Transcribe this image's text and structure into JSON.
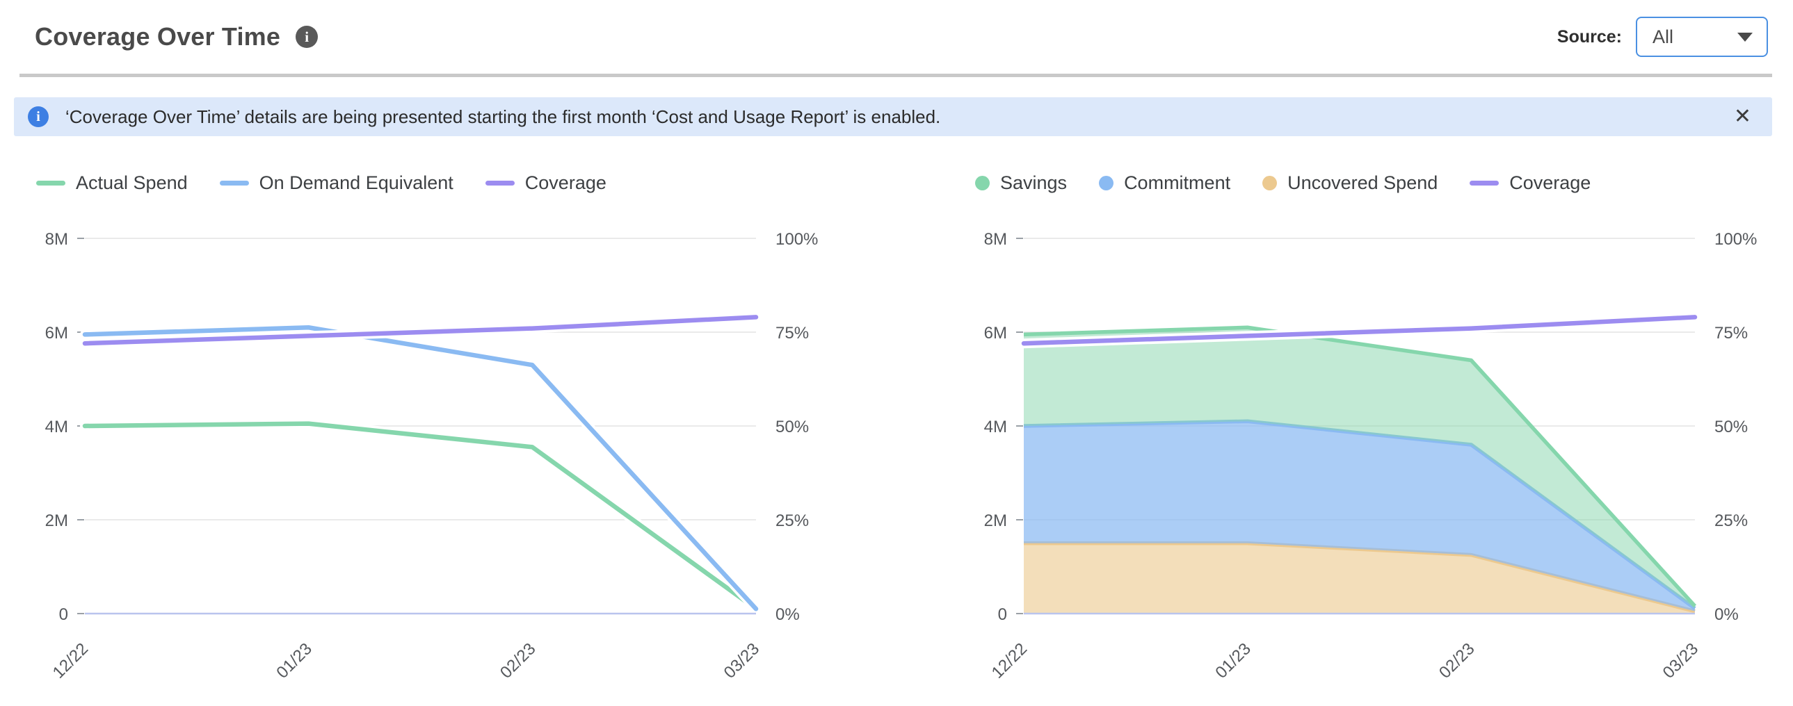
{
  "header": {
    "title": "Coverage Over Time",
    "title_info_icon": "i",
    "source_label": "Source:",
    "source_value": "All"
  },
  "banner": {
    "info_icon": "i",
    "text": "‘Coverage Over Time’ details are being presented starting the first month ‘Cost and Usage Report’ is enabled.",
    "close_icon": "✕"
  },
  "colors": {
    "accent_blue": "#4a90e2",
    "banner_bg": "#dce8fa",
    "banner_icon_blue": "#3d7fe3",
    "grid": "#e3e3e3",
    "baseline": "#b9c4ee",
    "green": "#85d6ac",
    "blue": "#8abaf2",
    "purple": "#9c8cf0",
    "orange": "#ecc98f"
  },
  "chart_data": [
    {
      "name": "spend-vs-on-demand",
      "type": "line",
      "x_labels": [
        "12/22",
        "01/23",
        "02/23",
        "03/23"
      ],
      "money_axis": {
        "max_m": 8,
        "ticks": [
          "8M",
          "6M",
          "4M",
          "2M",
          "0"
        ]
      },
      "percent_axis": {
        "max": 100,
        "ticks": [
          "100%",
          "75%",
          "50%",
          "25%",
          "0%"
        ]
      },
      "legend": [
        {
          "label": "Actual Spend",
          "color": "#85d6ac",
          "marker": "line"
        },
        {
          "label": "On Demand Equivalent",
          "color": "#8abaf2",
          "marker": "line"
        },
        {
          "label": "Coverage",
          "color": "#9c8cf0",
          "marker": "line"
        }
      ],
      "series": [
        {
          "name": "Actual Spend",
          "axis": "money",
          "unit": "M",
          "color": "#85d6ac",
          "values": [
            4.0,
            4.05,
            3.55,
            0.1
          ]
        },
        {
          "name": "On Demand Equivalent",
          "axis": "money",
          "unit": "M",
          "color": "#8abaf2",
          "values": [
            5.95,
            6.1,
            5.3,
            0.1
          ]
        },
        {
          "name": "Coverage",
          "axis": "percent",
          "unit": "%",
          "color": "#9c8cf0",
          "values": [
            72,
            74,
            76,
            79
          ]
        }
      ]
    },
    {
      "name": "savings-commitment-uncovered",
      "type": "stacked-area",
      "x_labels": [
        "12/22",
        "01/23",
        "02/23",
        "03/23"
      ],
      "money_axis": {
        "max_m": 8,
        "ticks": [
          "8M",
          "6M",
          "4M",
          "2M",
          "0"
        ]
      },
      "percent_axis": {
        "max": 100,
        "ticks": [
          "100%",
          "75%",
          "50%",
          "25%",
          "0%"
        ]
      },
      "legend": [
        {
          "label": "Savings",
          "color": "#85d6ac",
          "marker": "circle"
        },
        {
          "label": "Commitment",
          "color": "#8abaf2",
          "marker": "circle"
        },
        {
          "label": "Uncovered Spend",
          "color": "#ecc98f",
          "marker": "circle"
        },
        {
          "label": "Coverage",
          "color": "#9c8cf0",
          "marker": "line"
        }
      ],
      "series": [
        {
          "name": "Uncovered Spend",
          "axis": "money",
          "unit": "M",
          "color": "#ecc98f",
          "stack": true,
          "fill_opacity": 0.62,
          "values": [
            1.5,
            1.5,
            1.25,
            0.05
          ]
        },
        {
          "name": "Commitment",
          "axis": "money",
          "unit": "M",
          "color": "#8abaf2",
          "stack": true,
          "fill_opacity": 0.72,
          "values": [
            2.5,
            2.6,
            2.35,
            0.06
          ]
        },
        {
          "name": "Savings",
          "axis": "money",
          "unit": "M",
          "color": "#85d6ac",
          "stack": true,
          "fill_opacity": 0.5,
          "values": [
            1.95,
            2.0,
            1.8,
            0.05
          ]
        },
        {
          "name": "Coverage",
          "axis": "percent",
          "unit": "%",
          "color": "#9c8cf0",
          "values": [
            72,
            74,
            76,
            79
          ]
        }
      ]
    }
  ]
}
